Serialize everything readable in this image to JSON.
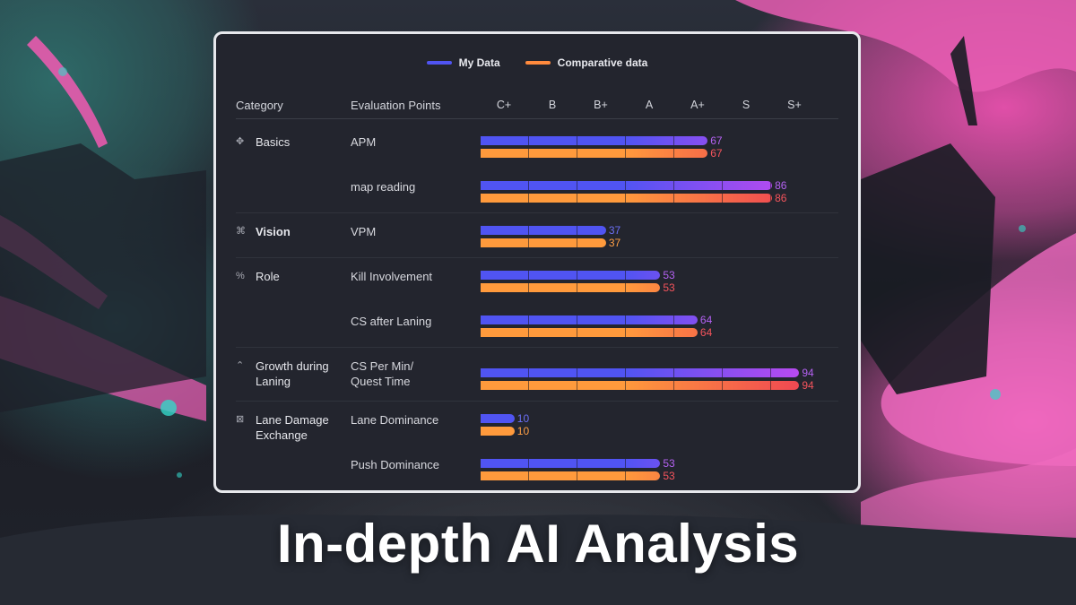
{
  "legend": {
    "my_data": "My Data",
    "comparative": "Comparative data"
  },
  "colors": {
    "my_data_start": "#5054f2",
    "my_data_end": "#b84af0",
    "comparative_start": "#ff9a3c",
    "comparative_end": "#f04852",
    "my_value_label_low": "#6b6ff5",
    "my_value_label_high": "#b461f2",
    "comparative_value_label_low": "#ff9f45",
    "comparative_value_label_high": "#f5545c",
    "card_bg": "#23252e"
  },
  "header": {
    "category": "Category",
    "evaluation_points": "Evaluation Points",
    "grades": [
      "C+",
      "B",
      "B+",
      "A",
      "A+",
      "S",
      "S+"
    ]
  },
  "categories": [
    {
      "icon": "basics-icon",
      "label": "Basics",
      "metrics": [
        {
          "label": "APM",
          "my_value": 67,
          "comparative_value": 67
        },
        {
          "label": "map reading",
          "my_value": 86,
          "comparative_value": 86
        }
      ]
    },
    {
      "icon": "vision-icon",
      "label": "Vision",
      "metrics": [
        {
          "label": "VPM",
          "my_value": 37,
          "comparative_value": 37
        }
      ]
    },
    {
      "icon": "role-icon",
      "label": "Role",
      "metrics": [
        {
          "label": "Kill Involvement",
          "my_value": 53,
          "comparative_value": 53
        },
        {
          "label": "CS after Laning",
          "my_value": 64,
          "comparative_value": 64
        }
      ]
    },
    {
      "icon": "growth-icon",
      "label": "Growth during\nLaning",
      "metrics": [
        {
          "label": "CS Per Min/\nQuest Time",
          "my_value": 94,
          "comparative_value": 94
        }
      ]
    },
    {
      "icon": "lane-damage-icon",
      "label": "Lane Damage\nExchange",
      "metrics": [
        {
          "label": "Lane Dominance",
          "my_value": 10,
          "comparative_value": 10
        },
        {
          "label": "Push Dominance",
          "my_value": 53,
          "comparative_value": 53
        }
      ]
    }
  ],
  "headline": "In-depth AI Analysis"
}
